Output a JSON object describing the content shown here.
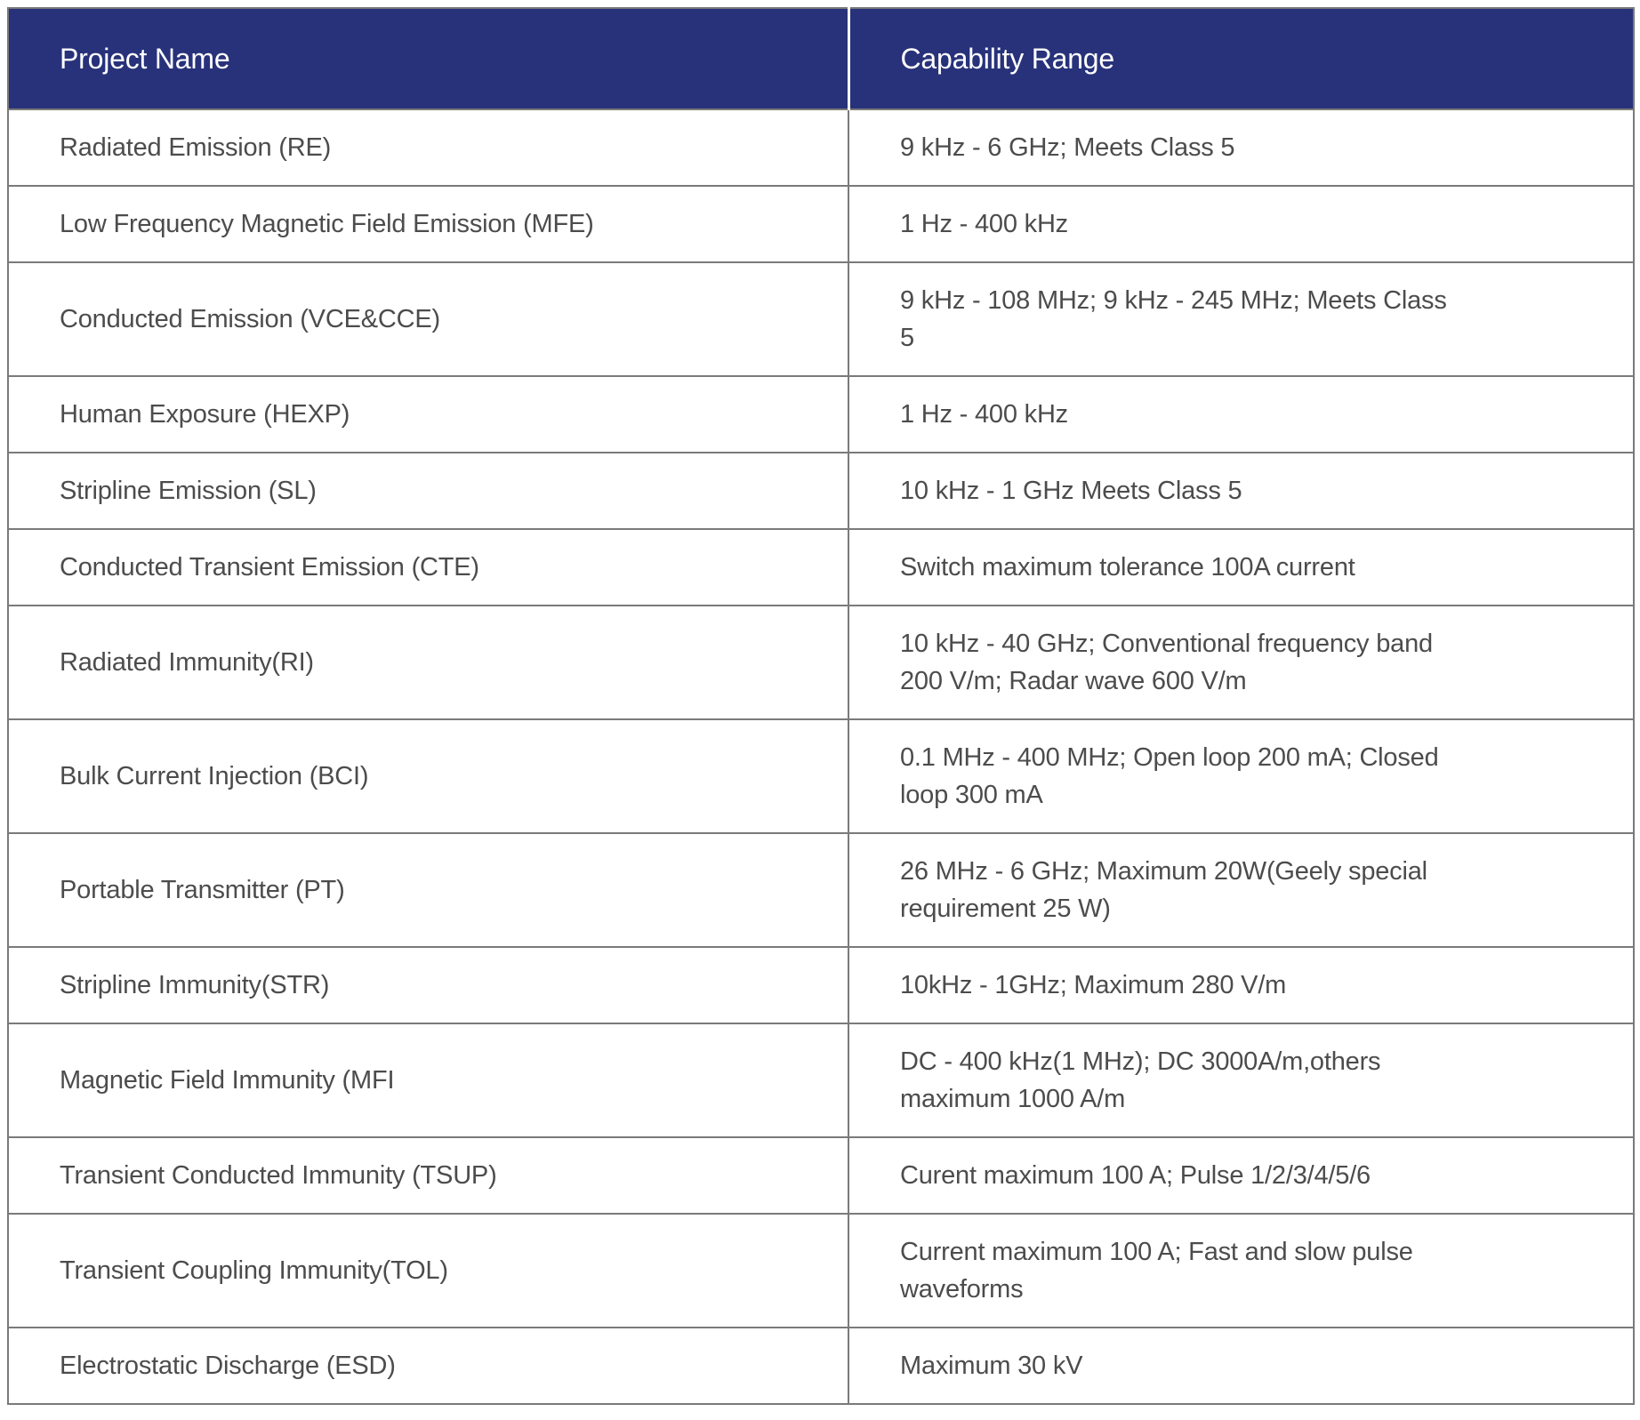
{
  "table": {
    "columns": [
      {
        "label": "Project Name"
      },
      {
        "label": "Capability Range"
      }
    ],
    "rows": [
      {
        "project": "Radiated Emission (RE)",
        "capability": "9 kHz - 6 GHz; Meets Class 5"
      },
      {
        "project": "Low Frequency Magnetic Field Emission (MFE)",
        "capability": "1 Hz - 400 kHz"
      },
      {
        "project": "Conducted Emission (VCE&CCE)",
        "capability": "9 kHz - 108 MHz; 9 kHz - 245 MHz; Meets Class\n5"
      },
      {
        "project": "Human Exposure (HEXP)",
        "capability": "1 Hz - 400 kHz"
      },
      {
        "project": "Stripline Emission (SL)",
        "capability": "10 kHz - 1 GHz Meets Class 5"
      },
      {
        "project": "Conducted Transient Emission (CTE)",
        "capability": "Switch maximum tolerance 100A current"
      },
      {
        "project": "Radiated Immunity(RI)",
        "capability": "10 kHz - 40 GHz; Conventional frequency band\n200 V/m; Radar wave 600 V/m"
      },
      {
        "project": "Bulk Current Injection (BCI)",
        "capability": "0.1 MHz - 400 MHz; Open loop 200 mA; Closed\nloop 300 mA"
      },
      {
        "project": "Portable Transmitter (PT)",
        "capability": "26 MHz - 6 GHz; Maximum 20W(Geely special\nrequirement 25 W)"
      },
      {
        "project": "Stripline Immunity(STR)",
        "capability": "10kHz - 1GHz; Maximum 280 V/m"
      },
      {
        "project": "Magnetic Field Immunity (MFI",
        "capability": "DC - 400 kHz(1 MHz); DC 3000A/m,others\nmaximum 1000 A/m"
      },
      {
        "project": "Transient Conducted Immunity (TSUP)",
        "capability": "Curent maximum 100 A; Pulse 1/2/3/4/5/6"
      },
      {
        "project": "Transient Coupling Immunity(TOL)",
        "capability": "Current maximum 100 A; Fast and slow pulse\nwaveforms"
      },
      {
        "project": "Electrostatic Discharge (ESD)",
        "capability": "Maximum 30 kV"
      }
    ]
  },
  "colors": {
    "header_bg": "#28327a",
    "header_text": "#ffffff",
    "body_text": "#4c4c4c",
    "grid_border": "#7a7a7a",
    "header_divider": "#ffffff"
  }
}
